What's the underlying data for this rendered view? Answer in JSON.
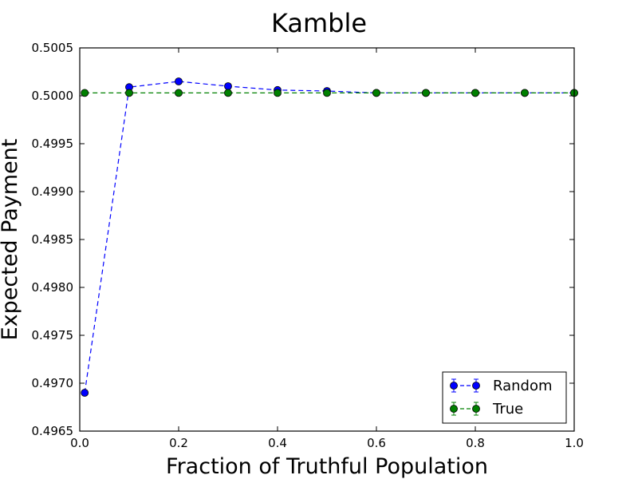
{
  "chart_data": {
    "type": "line",
    "title": "Kamble",
    "xlabel": "Fraction of Truthful Population",
    "ylabel": "Expected Payment",
    "xlim": [
      0.0,
      1.0
    ],
    "ylim": [
      0.4965,
      0.5005
    ],
    "x_ticks": [
      0.0,
      0.2,
      0.4,
      0.6,
      0.8,
      1.0
    ],
    "x_tick_labels": [
      "0.0",
      "0.2",
      "0.4",
      "0.6",
      "0.8",
      "1.0"
    ],
    "y_ticks": [
      0.4965,
      0.497,
      0.4975,
      0.498,
      0.4985,
      0.499,
      0.4995,
      0.5,
      0.5005
    ],
    "y_tick_labels": [
      "0.4965",
      "0.4970",
      "0.4975",
      "0.4980",
      "0.4985",
      "0.4990",
      "0.4995",
      "0.5000",
      "0.5005"
    ],
    "grid": false,
    "legend_position": "bottom-right",
    "series": [
      {
        "name": "Random",
        "color": "#0000ff",
        "linestyle": "dashed",
        "marker": "circle",
        "x": [
          0.01,
          0.1,
          0.2,
          0.3,
          0.4,
          0.5,
          0.6,
          0.7,
          0.8,
          0.9,
          1.0
        ],
        "values": [
          0.4969,
          0.50009,
          0.50015,
          0.5001,
          0.50006,
          0.50005,
          0.50003,
          0.50003,
          0.50003,
          0.50003,
          0.50003
        ]
      },
      {
        "name": "True",
        "color": "#008000",
        "linestyle": "dashed",
        "marker": "circle",
        "x": [
          0.01,
          0.1,
          0.2,
          0.3,
          0.4,
          0.5,
          0.6,
          0.7,
          0.8,
          0.9,
          1.0
        ],
        "values": [
          0.50003,
          0.50003,
          0.50003,
          0.50003,
          0.50003,
          0.50003,
          0.50003,
          0.50003,
          0.50003,
          0.50003,
          0.50003
        ]
      }
    ]
  }
}
